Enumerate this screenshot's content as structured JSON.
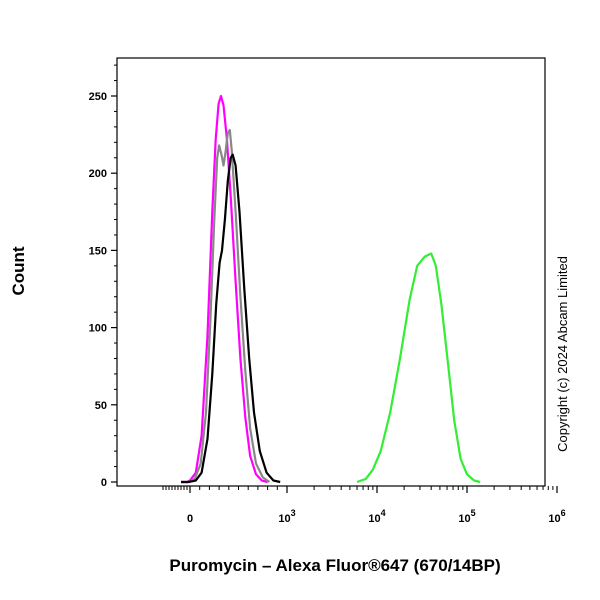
{
  "chart_data": {
    "type": "line",
    "xlabel": "Puromycin – Alexa Fluor®647 (670/14BP)",
    "ylabel": "Count",
    "x_scale": "biexponential",
    "xlim": [
      -1000,
      1000000
    ],
    "ylim": [
      0,
      280
    ],
    "x_ticks": [
      {
        "value": 0,
        "base": "0",
        "exp": ""
      },
      {
        "value": 1000,
        "base": "10",
        "exp": "3"
      },
      {
        "value": 10000,
        "base": "10",
        "exp": "4"
      },
      {
        "value": 100000,
        "base": "10",
        "exp": "5"
      },
      {
        "value": 1000000,
        "base": "10",
        "exp": "6"
      }
    ],
    "y_ticks": [
      0,
      50,
      100,
      150,
      200,
      250
    ],
    "annotation": "Copyright (c) 2024 Abcam Limited",
    "series": [
      {
        "color": "#ff00ff",
        "points": [
          [
            -300,
            0
          ],
          [
            -100,
            0
          ],
          [
            0,
            1
          ],
          [
            60,
            6
          ],
          [
            120,
            30
          ],
          [
            180,
            95
          ],
          [
            230,
            175
          ],
          [
            265,
            222
          ],
          [
            295,
            245
          ],
          [
            320,
            250
          ],
          [
            345,
            244
          ],
          [
            380,
            222
          ],
          [
            420,
            185
          ],
          [
            470,
            130
          ],
          [
            520,
            80
          ],
          [
            570,
            42
          ],
          [
            620,
            17
          ],
          [
            680,
            5
          ],
          [
            740,
            1
          ],
          [
            800,
            0
          ]
        ]
      },
      {
        "color": "#888888",
        "points": [
          [
            -300,
            0
          ],
          [
            -50,
            0
          ],
          [
            50,
            2
          ],
          [
            110,
            12
          ],
          [
            165,
            45
          ],
          [
            210,
            105
          ],
          [
            250,
            170
          ],
          [
            280,
            210
          ],
          [
            300,
            218
          ],
          [
            325,
            212
          ],
          [
            345,
            205
          ],
          [
            365,
            213
          ],
          [
            390,
            226
          ],
          [
            410,
            228
          ],
          [
            430,
            215
          ],
          [
            470,
            175
          ],
          [
            520,
            120
          ],
          [
            570,
            72
          ],
          [
            620,
            35
          ],
          [
            680,
            12
          ],
          [
            750,
            3
          ],
          [
            820,
            0
          ]
        ]
      },
      {
        "color": "#000000",
        "points": [
          [
            -300,
            0
          ],
          [
            -50,
            0
          ],
          [
            60,
            1
          ],
          [
            120,
            6
          ],
          [
            180,
            28
          ],
          [
            230,
            70
          ],
          [
            270,
            115
          ],
          [
            305,
            142
          ],
          [
            330,
            150
          ],
          [
            360,
            170
          ],
          [
            390,
            195
          ],
          [
            420,
            210
          ],
          [
            440,
            212
          ],
          [
            470,
            205
          ],
          [
            510,
            175
          ],
          [
            560,
            125
          ],
          [
            610,
            80
          ],
          [
            660,
            45
          ],
          [
            720,
            20
          ],
          [
            790,
            6
          ],
          [
            860,
            1
          ],
          [
            930,
            0
          ]
        ]
      },
      {
        "color": "#33ee33",
        "points": [
          [
            6000,
            0
          ],
          [
            7500,
            2
          ],
          [
            9000,
            8
          ],
          [
            11000,
            20
          ],
          [
            14000,
            45
          ],
          [
            18000,
            80
          ],
          [
            23000,
            118
          ],
          [
            28000,
            140
          ],
          [
            34000,
            146
          ],
          [
            40000,
            148
          ],
          [
            45000,
            140
          ],
          [
            52000,
            115
          ],
          [
            62000,
            75
          ],
          [
            72000,
            40
          ],
          [
            85000,
            15
          ],
          [
            100000,
            5
          ],
          [
            120000,
            1
          ],
          [
            140000,
            0
          ]
        ]
      }
    ]
  }
}
